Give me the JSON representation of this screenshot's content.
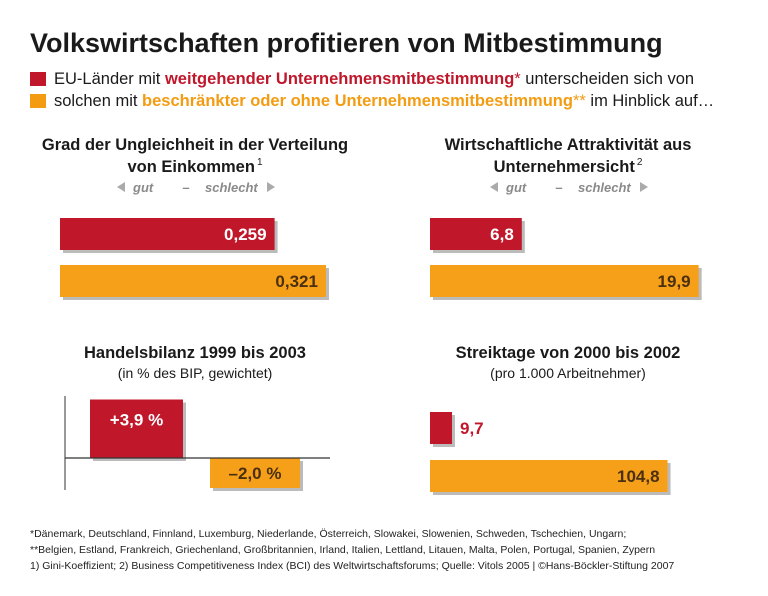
{
  "title": "Volkswirtschaften profitieren von Mitbestimmung",
  "legend": [
    {
      "prefix": "EU-Länder mit ",
      "highlight": "weitgehender Unternehmensmitbestimmung",
      "mark": "*",
      "suffix": " unterscheiden sich von",
      "color": "#c0172b"
    },
    {
      "prefix": "solchen mit ",
      "highlight": "beschränkter oder ohne Unternehmensmitbestimmung",
      "mark": "**",
      "suffix": " im Hinblick auf…",
      "color": "#f39c12"
    }
  ],
  "chart_data": [
    {
      "type": "bar",
      "title": [
        "Grad der Ungleichheit in der Verteilung",
        "von Einkommen"
      ],
      "title_note": "1",
      "scale_labels": [
        "gut",
        "–",
        "schlecht"
      ],
      "values": [
        0.259,
        0.321
      ],
      "value_labels": [
        "0,259",
        "0,321"
      ],
      "colors": [
        "#c0172b",
        "#f6a01a"
      ],
      "xlim": [
        0,
        0.35
      ]
    },
    {
      "type": "bar",
      "title": [
        "Wirtschaftliche Attraktivität aus",
        "Unternehmersicht"
      ],
      "title_note": "2",
      "scale_labels": [
        "gut",
        "–",
        "schlecht"
      ],
      "values": [
        6.8,
        19.9
      ],
      "value_labels": [
        "6,8",
        "19,9"
      ],
      "colors": [
        "#c0172b",
        "#f6a01a"
      ],
      "xlim": [
        0,
        22
      ]
    },
    {
      "type": "column",
      "title": [
        "Handelsbilanz 1999 bis 2003"
      ],
      "subtitle": "(in % des BIP, gewichtet)",
      "values": [
        3.9,
        -2.0
      ],
      "value_labels": [
        "+3,9 %",
        "–2,0 %"
      ],
      "colors": [
        "#c0172b",
        "#f6a01a"
      ],
      "ylim": [
        -2,
        4
      ]
    },
    {
      "type": "bar",
      "title": [
        "Streiktage von 2000 bis 2002"
      ],
      "subtitle": "(pro 1.000 Arbeitnehmer)",
      "values": [
        9.7,
        104.8
      ],
      "value_labels": [
        "9,7",
        "104,8"
      ],
      "colors": [
        "#c0172b",
        "#f6a01a"
      ],
      "xlim": [
        0,
        120
      ]
    }
  ],
  "footnotes": [
    "*Dänemark, Deutschland, Finnland, Luxemburg, Niederlande, Österreich, Slowakei, Slowenien, Schweden, Tschechien, Ungarn;",
    "**Belgien, Estland, Frankreich, Griechenland, Großbritannien, Irland, Italien, Lettland, Litauen, Malta, Polen, Portugal, Spanien, Zypern",
    "1) Gini-Koeffizient; 2) Business Competitiveness Index (BCI) des Weltwirtschaftsforums; Quelle: Vitols 2005 | ©Hans-Böckler-Stiftung 2007"
  ]
}
